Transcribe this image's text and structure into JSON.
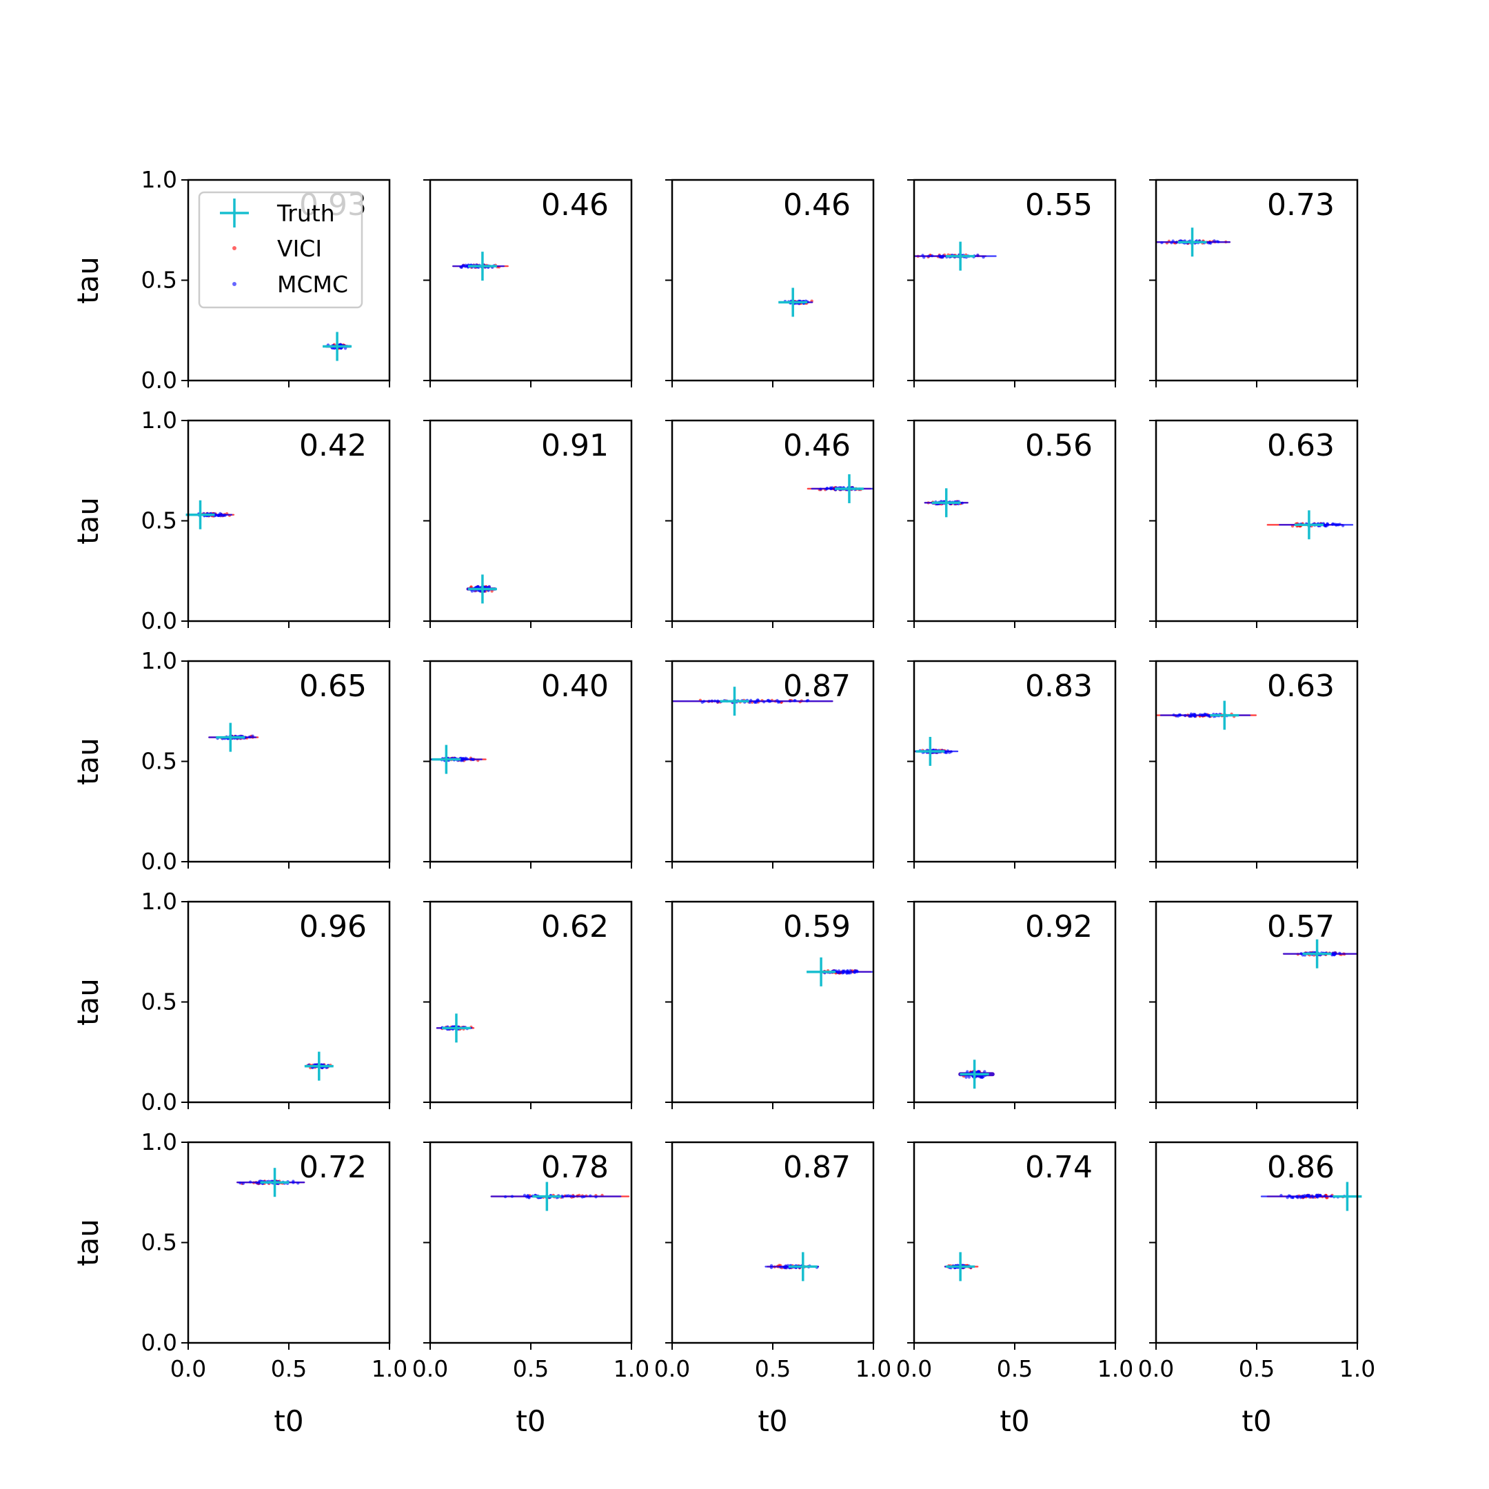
{
  "chart_data": {
    "type": "scatter",
    "grid": false,
    "rows": 5,
    "cols": 5,
    "xlabel": "t0",
    "ylabel": "tau",
    "xlim": [
      0,
      1
    ],
    "ylim": [
      0,
      1
    ],
    "xticks": [
      "0.0",
      "0.5",
      "1.0"
    ],
    "yticks": [
      "0.0",
      "0.5",
      "1.0"
    ],
    "legend": {
      "placement": "upper-left of first panel",
      "entries": [
        {
          "label": "Truth",
          "marker": "plus",
          "color": "#17becf"
        },
        {
          "label": "VICI",
          "marker": "dot",
          "color": "#ff0000"
        },
        {
          "label": "MCMC",
          "marker": "dot",
          "color": "#0000ff"
        }
      ]
    },
    "colors": {
      "truth": "#17becf",
      "vici": "#ff0000",
      "mcmc": "#0000ff"
    },
    "panels": [
      {
        "overlap": "0.93",
        "truth": [
          0.74,
          0.17
        ],
        "vici_t0": [
          0.68,
          0.81
        ],
        "mcmc_t0": [
          0.68,
          0.81
        ],
        "tau_spread": 0.012
      },
      {
        "overlap": "0.46",
        "truth": [
          0.26,
          0.57
        ],
        "vici_t0": [
          0.11,
          0.39
        ],
        "mcmc_t0": [
          0.11,
          0.37
        ],
        "tau_spread": 0.008
      },
      {
        "overlap": "0.46",
        "truth": [
          0.6,
          0.39
        ],
        "vici_t0": [
          0.55,
          0.7
        ],
        "mcmc_t0": [
          0.54,
          0.7
        ],
        "tau_spread": 0.008
      },
      {
        "overlap": "0.55",
        "truth": [
          0.23,
          0.62
        ],
        "vici_t0": [
          0.0,
          0.36
        ],
        "mcmc_t0": [
          0.0,
          0.41
        ],
        "tau_spread": 0.008
      },
      {
        "overlap": "0.73",
        "truth": [
          0.18,
          0.69
        ],
        "vici_t0": [
          0.0,
          0.37
        ],
        "mcmc_t0": [
          0.0,
          0.37
        ],
        "tau_spread": 0.008
      },
      {
        "overlap": "0.42",
        "truth": [
          0.06,
          0.53
        ],
        "vici_t0": [
          0.0,
          0.23
        ],
        "mcmc_t0": [
          0.0,
          0.22
        ],
        "tau_spread": 0.008
      },
      {
        "overlap": "0.91",
        "truth": [
          0.26,
          0.16
        ],
        "vici_t0": [
          0.18,
          0.33
        ],
        "mcmc_t0": [
          0.18,
          0.33
        ],
        "tau_spread": 0.015
      },
      {
        "overlap": "0.46",
        "truth": [
          0.88,
          0.66
        ],
        "vici_t0": [
          0.67,
          0.99
        ],
        "mcmc_t0": [
          0.69,
          1.0
        ],
        "tau_spread": 0.008
      },
      {
        "overlap": "0.56",
        "truth": [
          0.16,
          0.59
        ],
        "vici_t0": [
          0.05,
          0.27
        ],
        "mcmc_t0": [
          0.05,
          0.27
        ],
        "tau_spread": 0.008
      },
      {
        "overlap": "0.63",
        "truth": [
          0.76,
          0.48
        ],
        "vici_t0": [
          0.55,
          0.93
        ],
        "mcmc_t0": [
          0.61,
          0.98
        ],
        "tau_spread": 0.008
      },
      {
        "overlap": "0.65",
        "truth": [
          0.21,
          0.62
        ],
        "vici_t0": [
          0.1,
          0.35
        ],
        "mcmc_t0": [
          0.1,
          0.34
        ],
        "tau_spread": 0.008
      },
      {
        "overlap": "0.40",
        "truth": [
          0.08,
          0.51
        ],
        "vici_t0": [
          0.0,
          0.28
        ],
        "mcmc_t0": [
          0.0,
          0.26
        ],
        "tau_spread": 0.008
      },
      {
        "overlap": "0.87",
        "truth": [
          0.31,
          0.8
        ],
        "vici_t0": [
          0.0,
          0.8
        ],
        "mcmc_t0": [
          0.0,
          0.8
        ],
        "tau_spread": 0.008
      },
      {
        "overlap": "0.83",
        "truth": [
          0.08,
          0.55
        ],
        "vici_t0": [
          0.0,
          0.19
        ],
        "mcmc_t0": [
          0.0,
          0.22
        ],
        "tau_spread": 0.008
      },
      {
        "overlap": "0.63",
        "truth": [
          0.34,
          0.73
        ],
        "vici_t0": [
          0.0,
          0.5
        ],
        "mcmc_t0": [
          0.02,
          0.47
        ],
        "tau_spread": 0.008
      },
      {
        "overlap": "0.96",
        "truth": [
          0.65,
          0.18
        ],
        "vici_t0": [
          0.58,
          0.72
        ],
        "mcmc_t0": [
          0.58,
          0.72
        ],
        "tau_spread": 0.01
      },
      {
        "overlap": "0.62",
        "truth": [
          0.13,
          0.37
        ],
        "vici_t0": [
          0.03,
          0.22
        ],
        "mcmc_t0": [
          0.03,
          0.21
        ],
        "tau_spread": 0.008
      },
      {
        "overlap": "0.59",
        "truth": [
          0.74,
          0.65
        ],
        "vici_t0": [
          0.67,
          0.99
        ],
        "mcmc_t0": [
          0.67,
          1.0
        ],
        "tau_spread": 0.008
      },
      {
        "overlap": "0.92",
        "truth": [
          0.3,
          0.14
        ],
        "vici_t0": [
          0.22,
          0.4
        ],
        "mcmc_t0": [
          0.22,
          0.4
        ],
        "tau_spread": 0.02
      },
      {
        "overlap": "0.57",
        "truth": [
          0.8,
          0.74
        ],
        "vici_t0": [
          0.63,
          1.0
        ],
        "mcmc_t0": [
          0.63,
          1.0
        ],
        "tau_spread": 0.008
      },
      {
        "overlap": "0.72",
        "truth": [
          0.43,
          0.8
        ],
        "vici_t0": [
          0.24,
          0.58
        ],
        "mcmc_t0": [
          0.24,
          0.58
        ],
        "tau_spread": 0.008
      },
      {
        "overlap": "0.78",
        "truth": [
          0.58,
          0.73
        ],
        "vici_t0": [
          0.3,
          0.99
        ],
        "mcmc_t0": [
          0.3,
          0.95
        ],
        "tau_spread": 0.008
      },
      {
        "overlap": "0.87",
        "truth": [
          0.65,
          0.38
        ],
        "vici_t0": [
          0.47,
          0.73
        ],
        "mcmc_t0": [
          0.46,
          0.73
        ],
        "tau_spread": 0.008
      },
      {
        "overlap": "0.74",
        "truth": [
          0.23,
          0.38
        ],
        "vici_t0": [
          0.15,
          0.32
        ],
        "mcmc_t0": [
          0.15,
          0.3
        ],
        "tau_spread": 0.008
      },
      {
        "overlap": "0.86",
        "truth": [
          0.95,
          0.73
        ],
        "vici_t0": [
          0.55,
          1.0
        ],
        "mcmc_t0": [
          0.52,
          1.0
        ],
        "tau_spread": 0.008
      }
    ]
  }
}
